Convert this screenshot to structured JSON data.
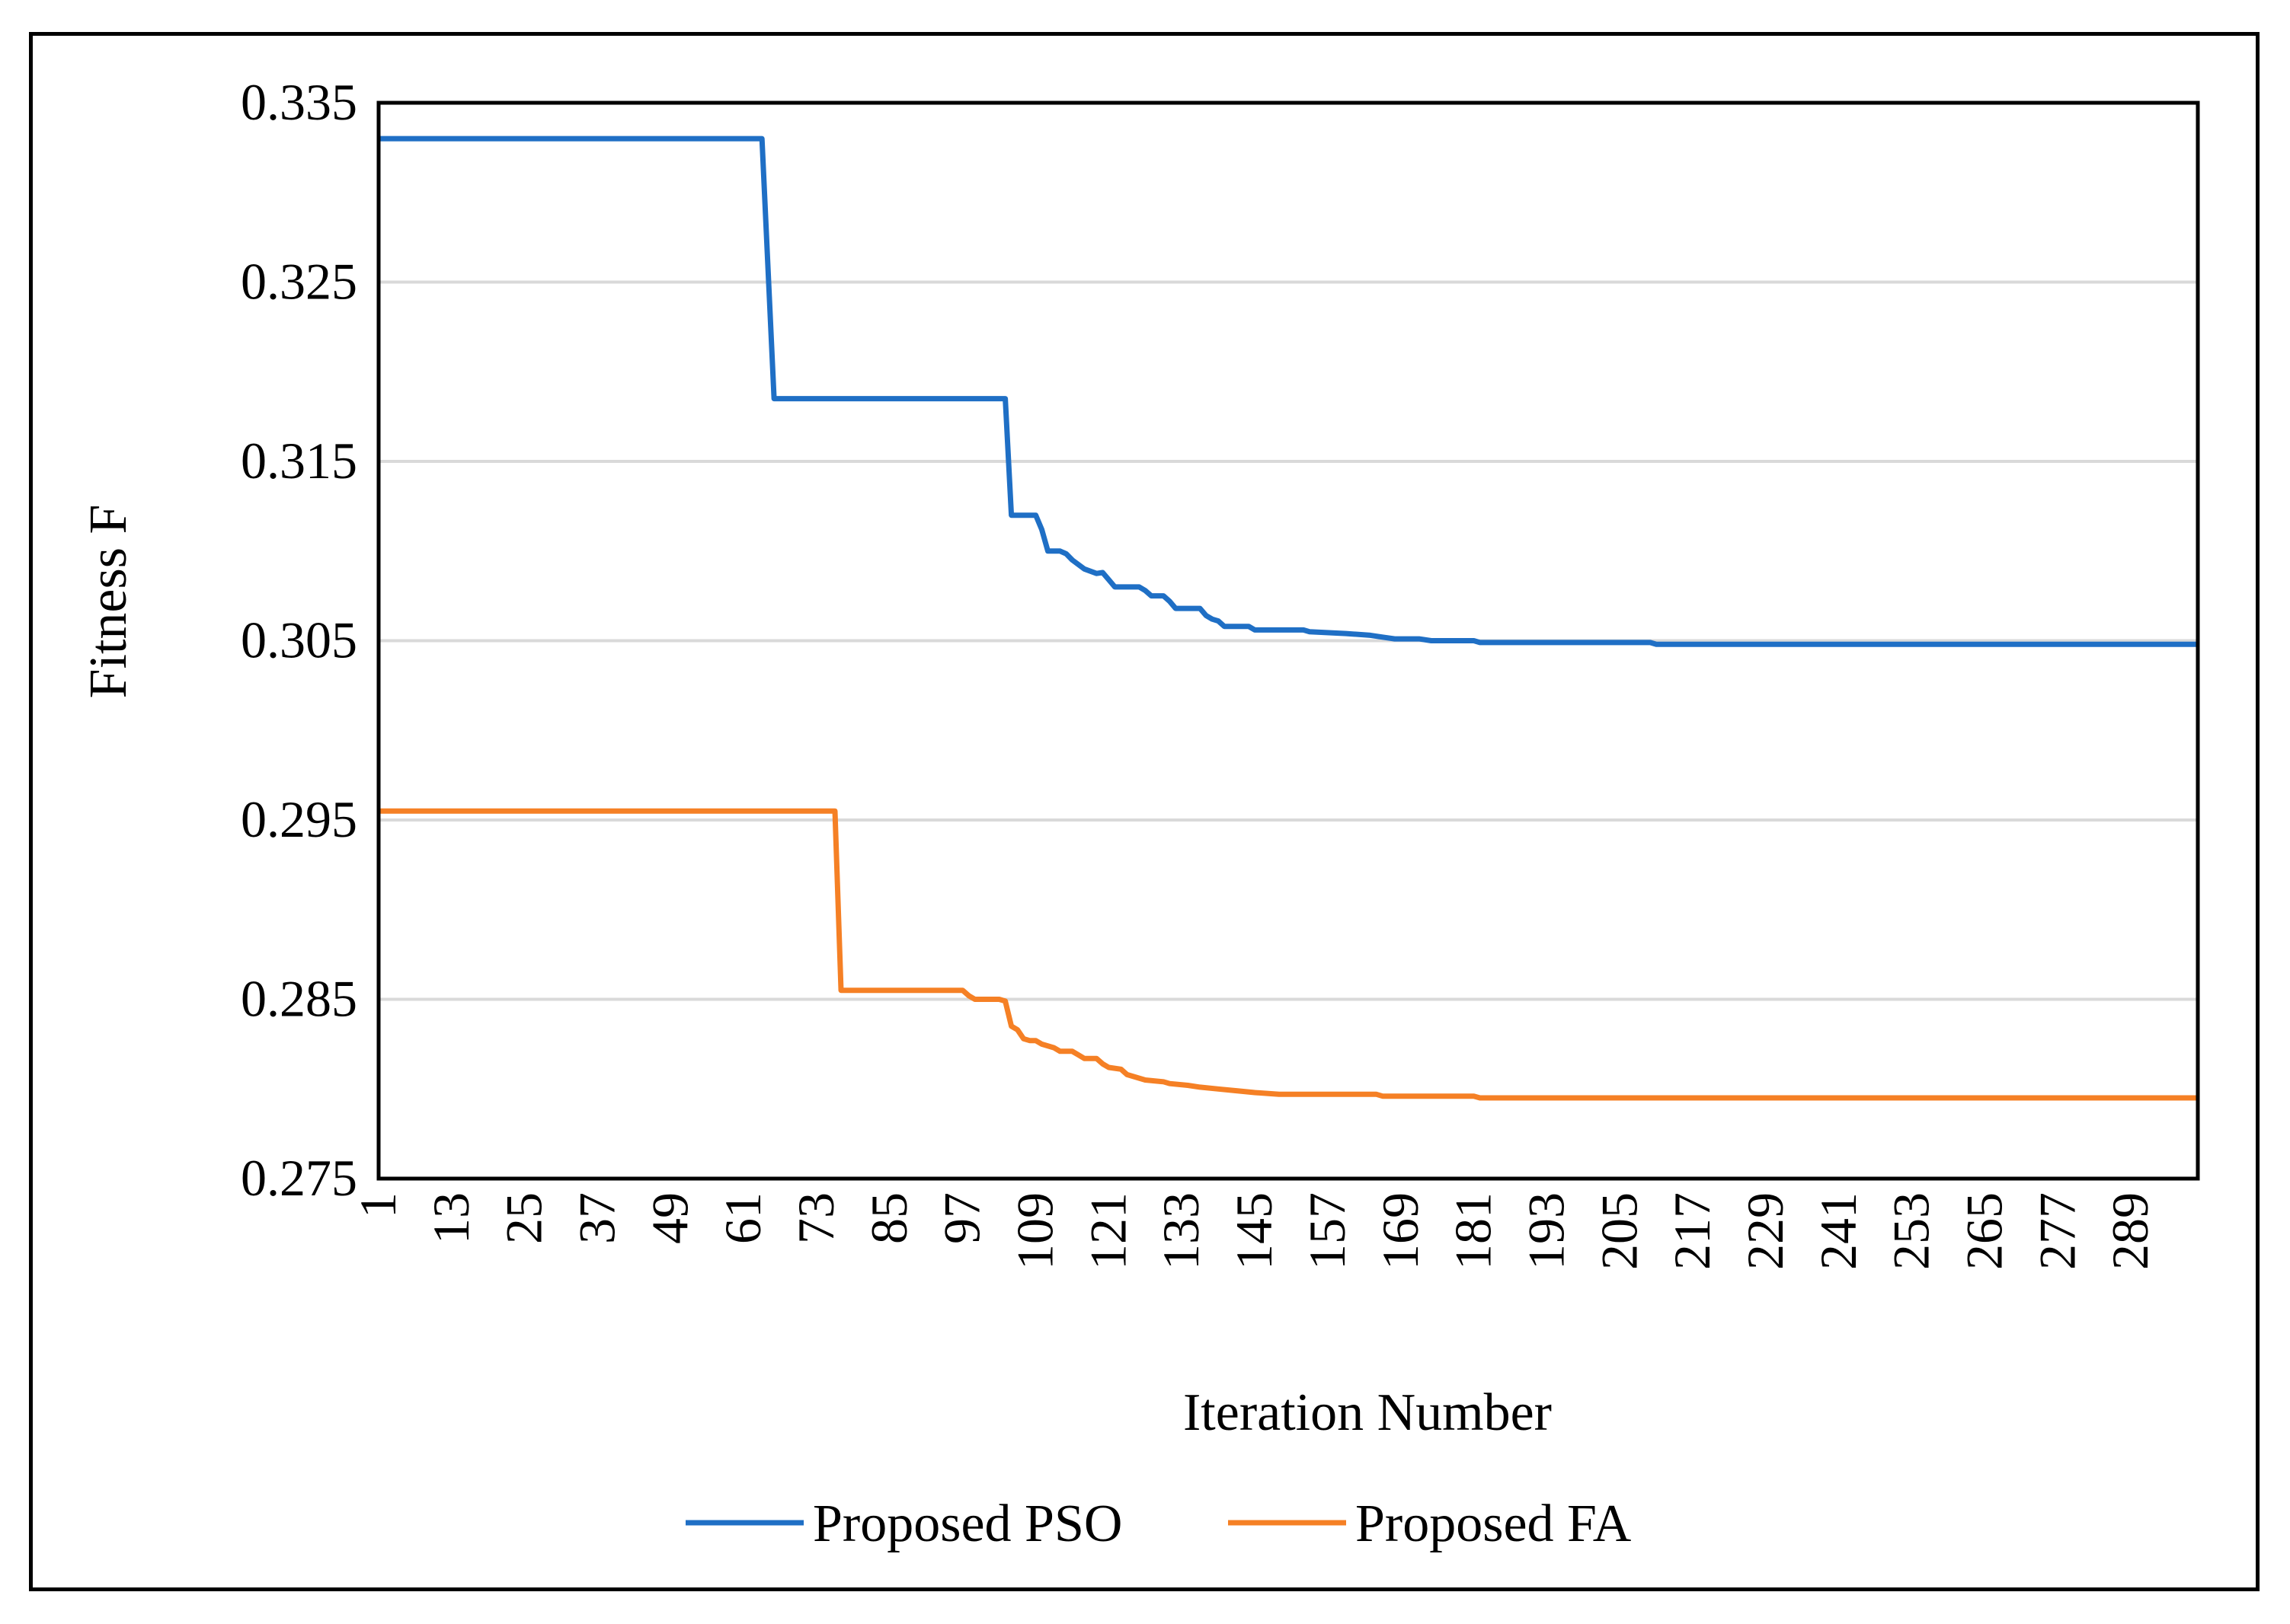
{
  "chart_data": {
    "type": "line",
    "title": "",
    "xlabel": "Iteration Number",
    "ylabel": "Fitness F",
    "xlim": [
      1,
      300
    ],
    "ylim": [
      0.275,
      0.335
    ],
    "y_ticks": [
      "0.275",
      "0.285",
      "0.295",
      "0.305",
      "0.315",
      "0.325",
      "0.335"
    ],
    "y_tick_values": [
      0.275,
      0.285,
      0.295,
      0.305,
      0.315,
      0.325,
      0.335
    ],
    "x_tick_labels": [
      "1",
      "13",
      "25",
      "37",
      "49",
      "61",
      "73",
      "85",
      "97",
      "109",
      "121",
      "133",
      "145",
      "157",
      "169",
      "181",
      "193",
      "205",
      "217",
      "229",
      "241",
      "253",
      "265",
      "277",
      "289"
    ],
    "grid": true,
    "legend_position": "bottom",
    "series": [
      {
        "name": "Proposed PSO",
        "color": "#1F6FC5",
        "points": [
          [
            1,
            0.333
          ],
          [
            64,
            0.333
          ],
          [
            66,
            0.3185
          ],
          [
            104,
            0.3185
          ],
          [
            105,
            0.312
          ],
          [
            108,
            0.312
          ],
          [
            109,
            0.312
          ],
          [
            110,
            0.3112
          ],
          [
            111,
            0.31
          ],
          [
            113,
            0.31
          ],
          [
            114,
            0.30985
          ],
          [
            115,
            0.3095
          ],
          [
            117,
            0.309
          ],
          [
            119,
            0.30875
          ],
          [
            120,
            0.3088
          ],
          [
            121,
            0.3084
          ],
          [
            122,
            0.308
          ],
          [
            126,
            0.308
          ],
          [
            127,
            0.3078
          ],
          [
            128,
            0.3075
          ],
          [
            130,
            0.3075
          ],
          [
            131,
            0.3072
          ],
          [
            132,
            0.3068
          ],
          [
            136,
            0.3068
          ],
          [
            137,
            0.3064
          ],
          [
            138,
            0.3062
          ],
          [
            139,
            0.3061
          ],
          [
            140,
            0.3058
          ],
          [
            144,
            0.3058
          ],
          [
            145,
            0.3056
          ],
          [
            153,
            0.3056
          ],
          [
            154,
            0.3055
          ],
          [
            160,
            0.3054
          ],
          [
            164,
            0.3053
          ],
          [
            166,
            0.3052
          ],
          [
            168,
            0.3051
          ],
          [
            172,
            0.3051
          ],
          [
            174,
            0.305
          ],
          [
            181,
            0.305
          ],
          [
            182,
            0.3049
          ],
          [
            210,
            0.3049
          ],
          [
            211,
            0.3048
          ],
          [
            300,
            0.3048
          ]
        ]
      },
      {
        "name": "Proposed FA",
        "color": "#F58025",
        "points": [
          [
            1,
            0.2955
          ],
          [
            76,
            0.2955
          ],
          [
            77,
            0.2855
          ],
          [
            97,
            0.2855
          ],
          [
            98,
            0.2852
          ],
          [
            99,
            0.285
          ],
          [
            103,
            0.285
          ],
          [
            104,
            0.2849
          ],
          [
            105,
            0.2835
          ],
          [
            106,
            0.2833
          ],
          [
            107,
            0.2828
          ],
          [
            108,
            0.2827
          ],
          [
            109,
            0.2827
          ],
          [
            110,
            0.2825
          ],
          [
            112,
            0.2823
          ],
          [
            113,
            0.2821
          ],
          [
            115,
            0.2821
          ],
          [
            116,
            0.2819
          ],
          [
            117,
            0.2817
          ],
          [
            119,
            0.2817
          ],
          [
            120,
            0.2814
          ],
          [
            121,
            0.2812
          ],
          [
            123,
            0.2811
          ],
          [
            124,
            0.2808
          ],
          [
            126,
            0.2806
          ],
          [
            127,
            0.2805
          ],
          [
            130,
            0.2804
          ],
          [
            131,
            0.2803
          ],
          [
            134,
            0.2802
          ],
          [
            136,
            0.2801
          ],
          [
            139,
            0.28
          ],
          [
            142,
            0.2799
          ],
          [
            145,
            0.2798
          ],
          [
            149,
            0.2797
          ],
          [
            165,
            0.2797
          ],
          [
            166,
            0.2796
          ],
          [
            181,
            0.2796
          ],
          [
            182,
            0.2795
          ],
          [
            300,
            0.2795
          ]
        ]
      }
    ]
  }
}
